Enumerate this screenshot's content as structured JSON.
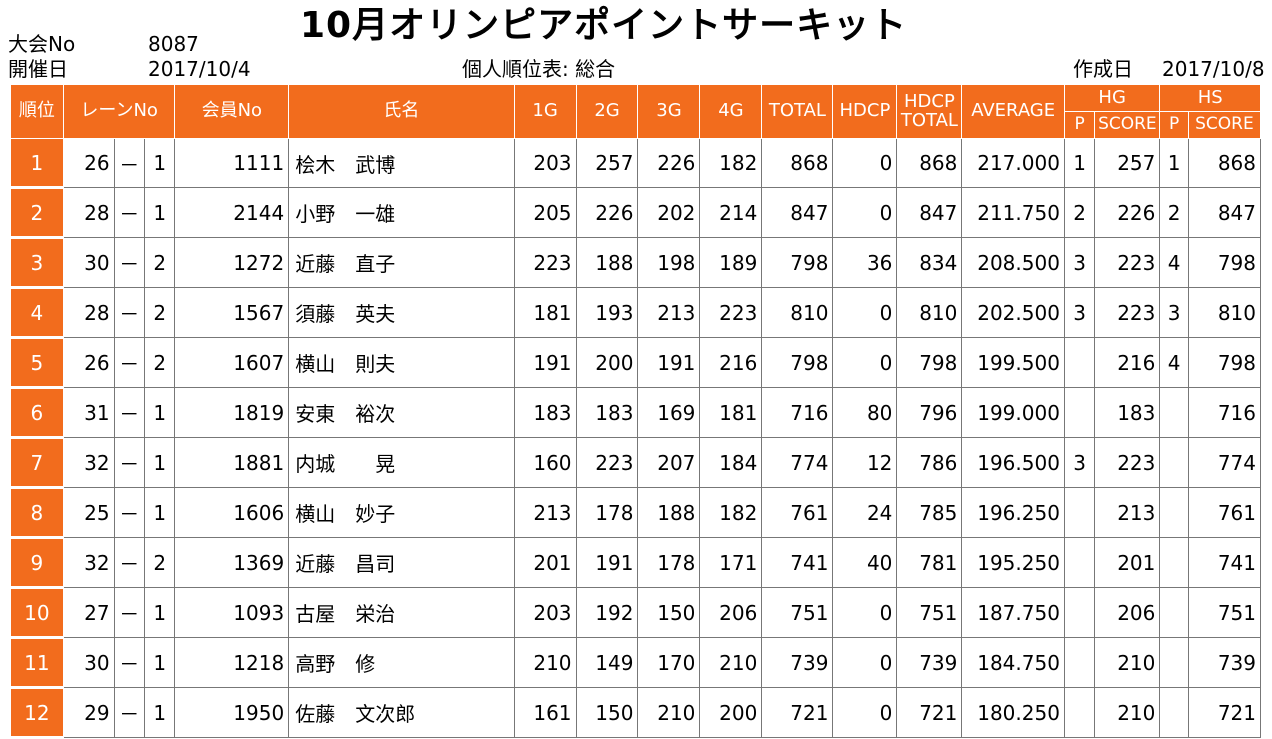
{
  "title": "10月オリンピアポイントサーキット",
  "meta": {
    "tournament_label": "大会No",
    "tournament_value": "8087",
    "date_label": "開催日",
    "date_value": "2017/10/4",
    "table_name": "個人順位表: 総合",
    "created_label": "作成日",
    "created_value": "2017/10/8"
  },
  "headers": {
    "rank": "順位",
    "lane": "レーンNo",
    "member": "会員No",
    "name": "氏名",
    "g1": "1G",
    "g2": "2G",
    "g3": "3G",
    "g4": "4G",
    "total": "TOTAL",
    "hdcp": "HDCP",
    "hdcp_total_1": "HDCP",
    "hdcp_total_2": "TOTAL",
    "average": "AVERAGE",
    "hg": "HG",
    "hs": "HS",
    "hg_p": "P",
    "hg_score": "SCORE",
    "hs_p": "P",
    "hs_score": "SCORE"
  },
  "rows": [
    {
      "rank": "1",
      "lane": "26",
      "dash": "－",
      "box": "1",
      "member": "1111",
      "name": "桧木　武博",
      "g1": "203",
      "g2": "257",
      "g3": "226",
      "g4": "182",
      "total": "868",
      "hdcp": "0",
      "hdcp_total": "868",
      "average": "217.000",
      "hg_p": "1",
      "hg_score": "257",
      "hs_p": "1",
      "hs_score": "868"
    },
    {
      "rank": "2",
      "lane": "28",
      "dash": "－",
      "box": "1",
      "member": "2144",
      "name": "小野　一雄",
      "g1": "205",
      "g2": "226",
      "g3": "202",
      "g4": "214",
      "total": "847",
      "hdcp": "0",
      "hdcp_total": "847",
      "average": "211.750",
      "hg_p": "2",
      "hg_score": "226",
      "hs_p": "2",
      "hs_score": "847"
    },
    {
      "rank": "3",
      "lane": "30",
      "dash": "－",
      "box": "2",
      "member": "1272",
      "name": "近藤　直子",
      "g1": "223",
      "g2": "188",
      "g3": "198",
      "g4": "189",
      "total": "798",
      "hdcp": "36",
      "hdcp_total": "834",
      "average": "208.500",
      "hg_p": "3",
      "hg_score": "223",
      "hs_p": "4",
      "hs_score": "798"
    },
    {
      "rank": "4",
      "lane": "28",
      "dash": "－",
      "box": "2",
      "member": "1567",
      "name": "須藤　英夫",
      "g1": "181",
      "g2": "193",
      "g3": "213",
      "g4": "223",
      "total": "810",
      "hdcp": "0",
      "hdcp_total": "810",
      "average": "202.500",
      "hg_p": "3",
      "hg_score": "223",
      "hs_p": "3",
      "hs_score": "810"
    },
    {
      "rank": "5",
      "lane": "26",
      "dash": "－",
      "box": "2",
      "member": "1607",
      "name": "横山　則夫",
      "g1": "191",
      "g2": "200",
      "g3": "191",
      "g4": "216",
      "total": "798",
      "hdcp": "0",
      "hdcp_total": "798",
      "average": "199.500",
      "hg_p": "",
      "hg_score": "216",
      "hs_p": "4",
      "hs_score": "798"
    },
    {
      "rank": "6",
      "lane": "31",
      "dash": "－",
      "box": "1",
      "member": "1819",
      "name": "安東　裕次",
      "g1": "183",
      "g2": "183",
      "g3": "169",
      "g4": "181",
      "total": "716",
      "hdcp": "80",
      "hdcp_total": "796",
      "average": "199.000",
      "hg_p": "",
      "hg_score": "183",
      "hs_p": "",
      "hs_score": "716"
    },
    {
      "rank": "7",
      "lane": "32",
      "dash": "－",
      "box": "1",
      "member": "1881",
      "name": "内城　　晃",
      "g1": "160",
      "g2": "223",
      "g3": "207",
      "g4": "184",
      "total": "774",
      "hdcp": "12",
      "hdcp_total": "786",
      "average": "196.500",
      "hg_p": "3",
      "hg_score": "223",
      "hs_p": "",
      "hs_score": "774"
    },
    {
      "rank": "8",
      "lane": "25",
      "dash": "－",
      "box": "1",
      "member": "1606",
      "name": "横山　妙子",
      "g1": "213",
      "g2": "178",
      "g3": "188",
      "g4": "182",
      "total": "761",
      "hdcp": "24",
      "hdcp_total": "785",
      "average": "196.250",
      "hg_p": "",
      "hg_score": "213",
      "hs_p": "",
      "hs_score": "761"
    },
    {
      "rank": "9",
      "lane": "32",
      "dash": "－",
      "box": "2",
      "member": "1369",
      "name": "近藤　昌司",
      "g1": "201",
      "g2": "191",
      "g3": "178",
      "g4": "171",
      "total": "741",
      "hdcp": "40",
      "hdcp_total": "781",
      "average": "195.250",
      "hg_p": "",
      "hg_score": "201",
      "hs_p": "",
      "hs_score": "741"
    },
    {
      "rank": "10",
      "lane": "27",
      "dash": "－",
      "box": "1",
      "member": "1093",
      "name": "古屋　栄治",
      "g1": "203",
      "g2": "192",
      "g3": "150",
      "g4": "206",
      "total": "751",
      "hdcp": "0",
      "hdcp_total": "751",
      "average": "187.750",
      "hg_p": "",
      "hg_score": "206",
      "hs_p": "",
      "hs_score": "751"
    },
    {
      "rank": "11",
      "lane": "30",
      "dash": "－",
      "box": "1",
      "member": "1218",
      "name": "高野　修",
      "g1": "210",
      "g2": "149",
      "g3": "170",
      "g4": "210",
      "total": "739",
      "hdcp": "0",
      "hdcp_total": "739",
      "average": "184.750",
      "hg_p": "",
      "hg_score": "210",
      "hs_p": "",
      "hs_score": "739"
    },
    {
      "rank": "12",
      "lane": "29",
      "dash": "－",
      "box": "1",
      "member": "1950",
      "name": "佐藤　文次郎",
      "g1": "161",
      "g2": "150",
      "g3": "210",
      "g4": "200",
      "total": "721",
      "hdcp": "0",
      "hdcp_total": "721",
      "average": "180.250",
      "hg_p": "",
      "hg_score": "210",
      "hs_p": "",
      "hs_score": "721"
    }
  ]
}
